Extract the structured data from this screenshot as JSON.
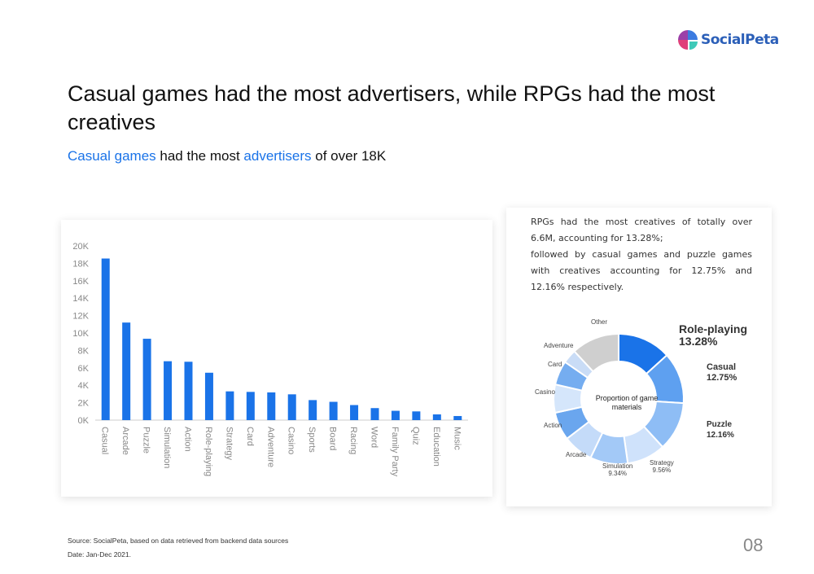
{
  "logo": {
    "text": "SocialPeta"
  },
  "title": "Casual games had the most advertisers, while RPGs had the most creatives",
  "subtitle": {
    "part1": "Casual games",
    "part2": " had the most ",
    "part3": "advertisers",
    "part4": " of over 18K"
  },
  "description": {
    "line1": "RPGs had the most creatives of totally over 6.6M, accounting for 13.28%;",
    "line2": "followed by casual games and puzzle games with creatives accounting for 12.75% and 12.16% respectively."
  },
  "footer": {
    "source": "Source: SocialPeta, based on data retrieved from backend data sources",
    "date": "Date: Jan-Dec 2021."
  },
  "page_number": "08",
  "colors": {
    "bar": "#1a73e8",
    "accent": "#1a73e8"
  },
  "chart_data": [
    {
      "type": "bar",
      "title": "",
      "xlabel": "",
      "ylabel": "",
      "ylim": [
        0,
        20000
      ],
      "yticks": [
        "0K",
        "2K",
        "4K",
        "6K",
        "8K",
        "10K",
        "12K",
        "14K",
        "16K",
        "18K",
        "20K"
      ],
      "categories": [
        "Casual",
        "Arcade",
        "Puzzle",
        "Simulation",
        "Action",
        "Role-playing",
        "Strategy",
        "Card",
        "Adventure",
        "Casino",
        "Sports",
        "Board",
        "Racing",
        "Word",
        "Family Party",
        "Quiz",
        "Education",
        "Music"
      ],
      "values": [
        18550,
        11200,
        9340,
        6760,
        6700,
        5440,
        3300,
        3240,
        3180,
        2960,
        2300,
        2100,
        1730,
        1380,
        1070,
        1000,
        660,
        470
      ]
    },
    {
      "type": "pie",
      "title": "Proportion of game materials",
      "slices": [
        {
          "label": "Role-playing",
          "pct_label": "13.28%",
          "value": 13.28,
          "color": "#1a73e8"
        },
        {
          "label": "Casual",
          "pct_label": "12.75%",
          "value": 12.75,
          "color": "#5ea0f0"
        },
        {
          "label": "Puzzle",
          "pct_label": "12.16%",
          "value": 12.16,
          "color": "#8ebdf5"
        },
        {
          "label": "Strategy",
          "pct_label": "9.56%",
          "value": 9.56,
          "color": "#cfe2fb"
        },
        {
          "label": "Simulation",
          "pct_label": "9.34%",
          "value": 9.34,
          "color": "#a3c9f7"
        },
        {
          "label": "Arcade",
          "value": 7.5,
          "color": "#c4dbf9"
        },
        {
          "label": "Action",
          "value": 7,
          "color": "#6aa6ee"
        },
        {
          "label": "Casino",
          "value": 7,
          "color": "#d5e6fb"
        },
        {
          "label": "Card",
          "value": 6,
          "color": "#75adf0"
        },
        {
          "label": "Adventure",
          "value": 3.5,
          "color": "#c9dcf6"
        },
        {
          "label": "Other",
          "value": 11.91,
          "color": "#cfcfcf"
        }
      ]
    }
  ]
}
